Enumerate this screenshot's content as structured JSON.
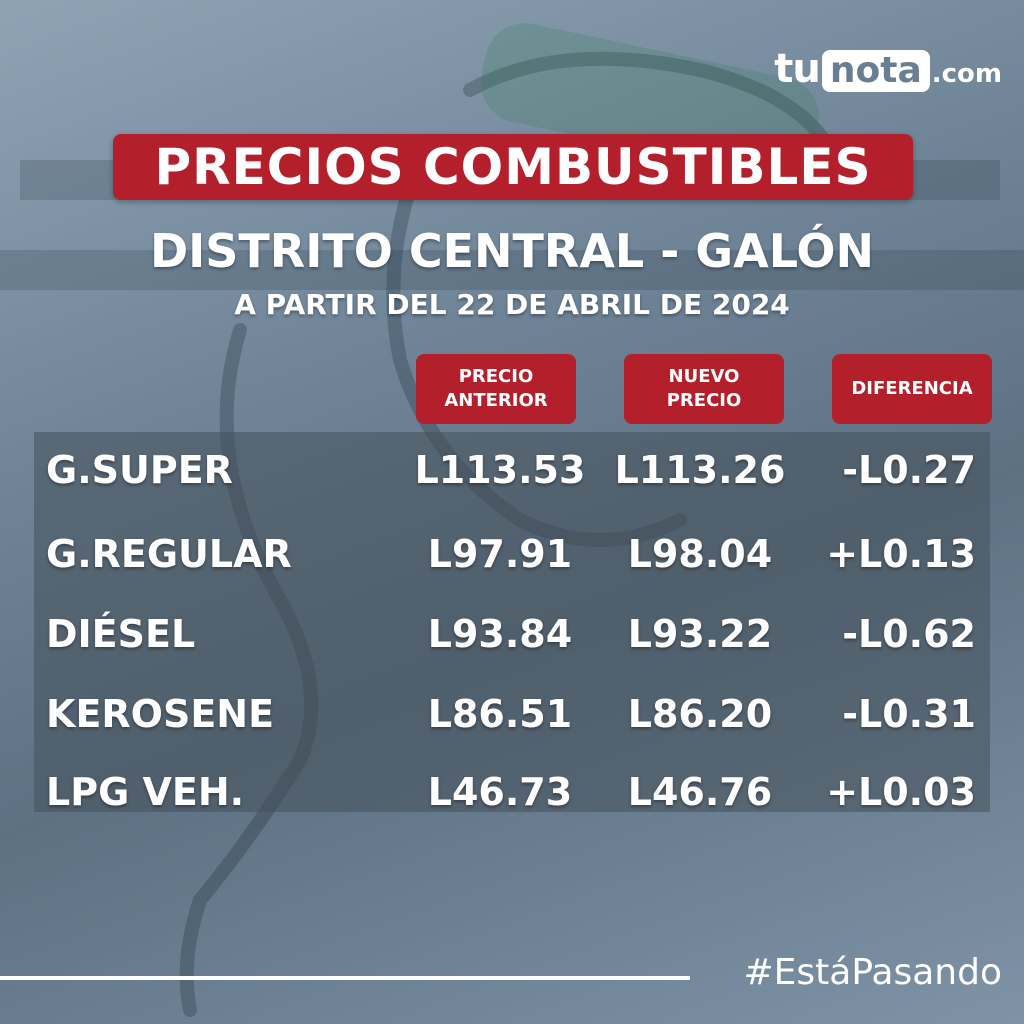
{
  "brand": {
    "tu": "tu",
    "nota": "nota",
    "com": ".com"
  },
  "title": "PRECIOS COMBUSTIBLES",
  "subtitle": "DISTRITO CENTRAL - GALÓN",
  "date_line": "A PARTIR DEL 22 DE ABRIL DE 2024",
  "table": {
    "headers": [
      "PRECIO\nANTERIOR",
      "NUEVO\nPRECIO",
      "DIFERENCIA"
    ],
    "rows": [
      {
        "fuel": "G.SUPER",
        "previous": "L113.53",
        "new": "L113.26",
        "diff": "-L0.27"
      },
      {
        "fuel": "G.REGULAR",
        "previous": "L97.91",
        "new": "L98.04",
        "diff": "+L0.13"
      },
      {
        "fuel": "DIÉSEL",
        "previous": "L93.84",
        "new": "L93.22",
        "diff": "-L0.62"
      },
      {
        "fuel": "KEROSENE",
        "previous": "L86.51",
        "new": "L86.20",
        "diff": "-L0.31"
      },
      {
        "fuel": "LPG VEH.",
        "previous": "L46.73",
        "new": "L46.76",
        "diff": "+L0.03"
      }
    ]
  },
  "hashtag": "#EstáPasando",
  "colors": {
    "accent": "#b3202c",
    "background": "#6f8497"
  }
}
